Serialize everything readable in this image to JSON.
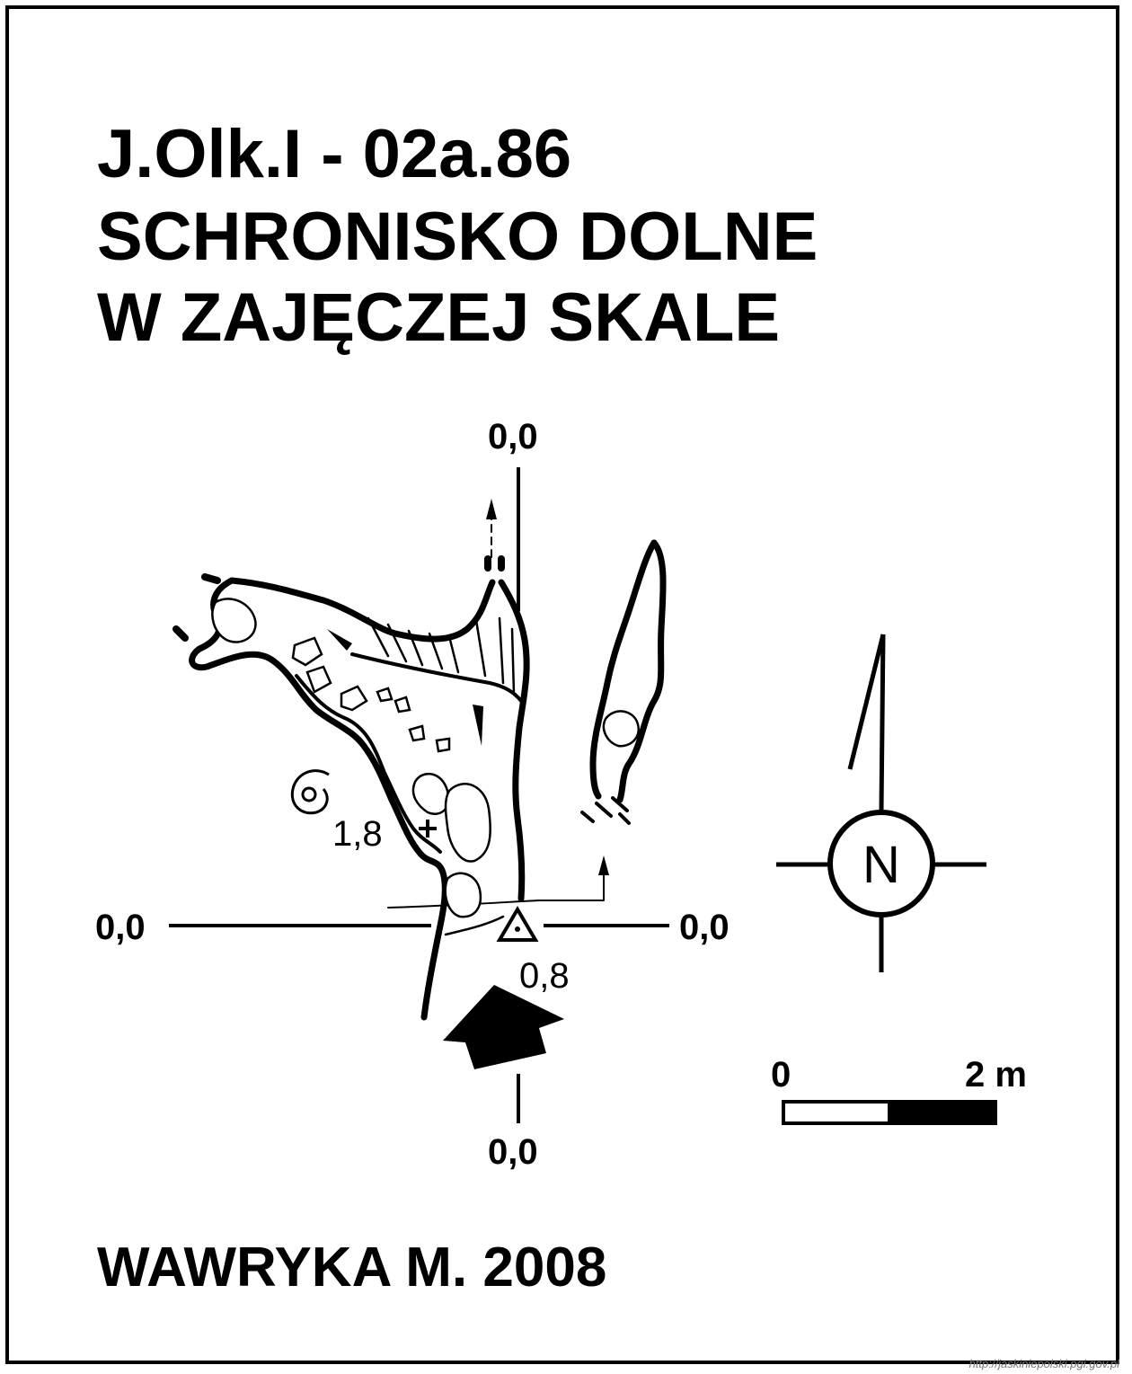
{
  "map": {
    "code": "J.Olk.I - 02a.86",
    "name_line1": "SCHRONISKO DOLNE",
    "name_line2": "W ZAJĘCZEJ SKALE",
    "author": "WAWRYKA M. 2008",
    "source_url": "http://jaskiniepolski.pgi.gov.pl"
  },
  "reference_lines": {
    "top": "0,0",
    "bottom": "0,0",
    "left": "0,0",
    "right": "0,0"
  },
  "depth_marks": {
    "point_1": "1,8",
    "entrance_point": "0,8"
  },
  "north_arrow": {
    "label": "N",
    "icon": "compass-north-icon"
  },
  "scale_bar": {
    "start": "0",
    "end": "2 m"
  },
  "colors": {
    "ink": "#000000",
    "paper": "#ffffff"
  }
}
